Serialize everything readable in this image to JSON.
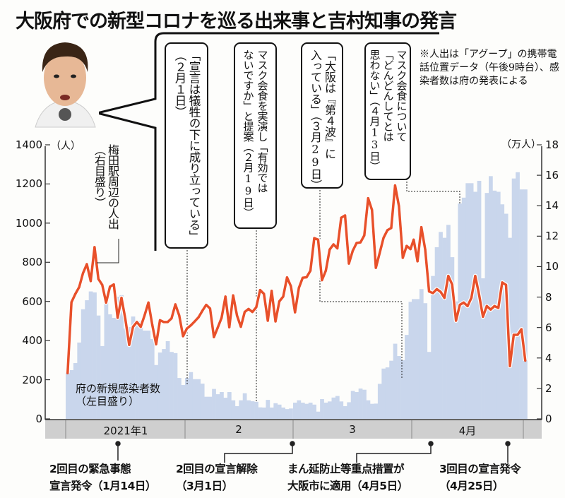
{
  "title": "大阪府での新型コロナを巡る出来事と吉村知事の発言",
  "note": "※人出は「アグープ」の携帯電話位置データ（午後9時台）、感染者数は府の発表による",
  "quotes": [
    {
      "lines": [
        "「宣言は犠牲の下に成り立っている」",
        "（２月１日）"
      ]
    },
    {
      "lines": [
        "マスク会食を実演し「有効では",
        "ないですか」と提案（２月19日）"
      ]
    },
    {
      "lines": [
        "「大阪は『第４波』に",
        "入っている」（３月29日）"
      ]
    },
    {
      "lines": [
        "マスク会食について",
        "「どんどんしてとは",
        "思わない」（４月13日）"
      ]
    }
  ],
  "labels": {
    "people": [
      "梅田駅周辺の人出",
      "（右目盛り）"
    ],
    "cases": [
      "府の新規感染者数",
      "（左目盛り）"
    ]
  },
  "events": [
    {
      "lines": [
        "2回目の緊急事態",
        "宣言発令（1月14日）"
      ]
    },
    {
      "lines": [
        "2回目の宣言解除",
        "（3月1日）"
      ]
    },
    {
      "lines": [
        "まん延防止等重点措置が",
        "大阪市に適用（4月5日）"
      ]
    },
    {
      "lines": [
        "3回目の宣言発令",
        "（4月25日）"
      ]
    }
  ],
  "colors": {
    "bars": "#c9d6ec",
    "line": "#e8502a",
    "band": "#cfcfcf"
  },
  "chart_data": {
    "type": "bar+line",
    "title": "",
    "xlabel": "",
    "x_tick_labels": [
      "2021年1",
      "2",
      "3",
      "4月"
    ],
    "left_axis": {
      "unit": "（人）",
      "ylim": [
        0,
        1400
      ],
      "ticks": [
        0,
        200,
        400,
        600,
        800,
        1000,
        1200,
        1400
      ]
    },
    "right_axis": {
      "unit": "（万人）",
      "ylim": [
        0,
        18
      ],
      "ticks": [
        0,
        2,
        4,
        6,
        8,
        10,
        12,
        14,
        16,
        18
      ]
    },
    "grid": false,
    "series": [
      {
        "name": "府の新規感染者数（左目盛り）",
        "type": "bar",
        "axis": "left",
        "values_by_month": {
          "1": [
            257,
            249,
            285,
            390,
            560,
            606,
            651,
            646,
            528,
            372,
            632,
            534,
            516,
            624,
            632,
            462,
            469,
            523,
            498,
            498,
            451,
            451,
            408,
            275,
            339,
            357,
            397,
            342,
            336,
            209,
            173
          ],
          "2": [
            209,
            239,
            203,
            203,
            180,
            113,
            113,
            153,
            126,
            137,
            108,
            137,
            95,
            65,
            95,
            131,
            95,
            90,
            87,
            59,
            58,
            97,
            58,
            80,
            73,
            58,
            50,
            53
          ],
          "3": [
            83,
            95,
            83,
            77,
            83,
            73,
            37,
            101,
            83,
            89,
            109,
            117,
            89,
            65,
            85,
            143,
            137,
            155,
            149,
            95,
            77,
            78,
            179,
            257,
            263,
            297,
            384,
            321,
            300,
            429,
            598
          ],
          "4": [
            612,
            612,
            663,
            591,
            342,
            730,
            877,
            955,
            925,
            991,
            826,
            600,
            1100,
            1130,
            1204,
            1204,
            1160,
            1216,
            718,
            1154,
            1240,
            1166,
            1160,
            1096,
            1048,
            925,
            1228,
            1260,
            1172,
            1172
          ]
        }
      },
      {
        "name": "梅田駅周辺の人出（右目盛り）",
        "type": "line",
        "axis": "right",
        "values_by_month": {
          "1": [
            3.0,
            7.66,
            8.2,
            8.65,
            9.57,
            10.16,
            9.05,
            11.28,
            9.19,
            8.8,
            7.64,
            8.68,
            8.83,
            6.64,
            7.95,
            6.56,
            4.86,
            6.05,
            6.36,
            6.05,
            6.8,
            7.64,
            6.17,
            4.9,
            6.48,
            6.36,
            6.36,
            6.6,
            7.52,
            6.79,
            5.43
          ],
          "2": [
            5.94,
            6.14,
            6.4,
            6.67,
            7.1,
            7.49,
            7.25,
            5.37,
            6.0,
            6.64,
            8.03,
            6.02,
            8.11,
            6.79,
            6.05,
            7.02,
            7.22,
            7.02,
            7.33,
            8.46,
            8.21,
            6.45,
            8.41,
            6.4,
            7.72,
            8.03,
            9.29,
            8.72
          ],
          "3": [
            7.0,
            8.6,
            9.27,
            9.3,
            9.73,
            11.87,
            11.77,
            9.11,
            9.73,
            11.12,
            11.46,
            11.2,
            13.21,
            13.36,
            10.2,
            11.04,
            11.55,
            11.59,
            12.05,
            14.49,
            13.72,
            9.92,
            10.9,
            11.89,
            12.39,
            12.54,
            15.33,
            13.98,
            10.58,
            11.36,
            11.15
          ],
          "4": [
            11.77,
            10.35,
            12.59,
            11.12,
            8.37,
            8.26,
            8.52,
            8.34,
            7.95,
            9.39,
            8.83,
            6.45,
            7.49,
            7.64,
            7.41,
            7.95,
            9.39,
            8.15,
            6.71,
            7.41,
            7.18,
            7.41,
            7.29,
            8.96,
            8.8,
            3.47,
            5.52,
            5.52,
            5.89,
            3.82
          ]
        }
      }
    ]
  }
}
